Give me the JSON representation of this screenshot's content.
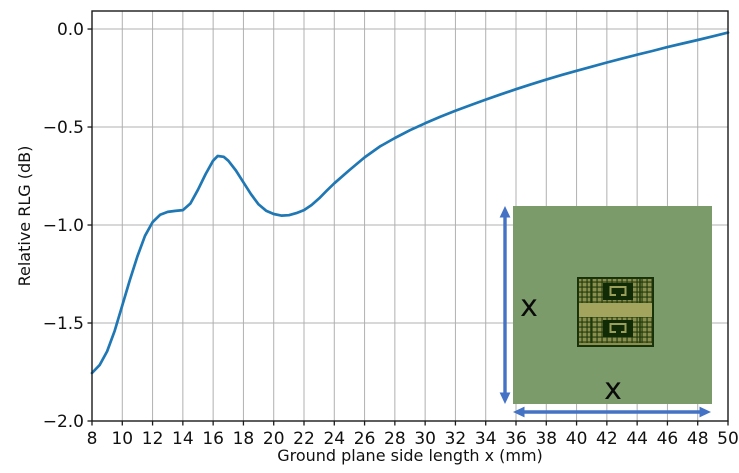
{
  "figure": {
    "background": "#ffffff"
  },
  "chart_data": {
    "type": "line",
    "title": "",
    "xlabel": "Ground plane side length x (mm)",
    "ylabel": "Relative RLG (dB)",
    "xlim": [
      8,
      50
    ],
    "ylim": [
      -2.0,
      0.092
    ],
    "grid": true,
    "legend": null,
    "xticks": [
      8,
      10,
      12,
      14,
      16,
      18,
      20,
      22,
      24,
      26,
      28,
      30,
      32,
      34,
      36,
      38,
      40,
      42,
      44,
      46,
      48,
      50
    ],
    "ytick_values": [
      0.0,
      -0.5,
      -1.0,
      -1.5,
      -2.0
    ],
    "ytick_labels": [
      "0.0",
      "−0.5",
      "−1.0",
      "−1.5",
      "−2.0"
    ],
    "colors": {
      "line": "#1f77b4",
      "grid": "#b0b0b0",
      "axis": "#1a1a1a",
      "text": "#111111"
    },
    "series": [
      {
        "name": "relative-rlg-vs-ground-plane-size",
        "color": "#1f77b4",
        "x": [
          8,
          8.5,
          9,
          9.5,
          10,
          10.5,
          11,
          11.5,
          12,
          12.5,
          13,
          13.5,
          14,
          14.5,
          15,
          15.5,
          16,
          16.3,
          16.7,
          17,
          17.5,
          18,
          18.5,
          19,
          19.5,
          20,
          20.5,
          21,
          21.5,
          22,
          22.5,
          23,
          23.5,
          24,
          25,
          26,
          27,
          28,
          29,
          30,
          31,
          32,
          33,
          34,
          35,
          36,
          37,
          38,
          39,
          40,
          41,
          42,
          43,
          44,
          45,
          46,
          47,
          48,
          49,
          50
        ],
        "y": [
          -1.755,
          -1.715,
          -1.645,
          -1.54,
          -1.41,
          -1.28,
          -1.16,
          -1.055,
          -0.985,
          -0.948,
          -0.933,
          -0.928,
          -0.924,
          -0.89,
          -0.82,
          -0.74,
          -0.672,
          -0.648,
          -0.652,
          -0.672,
          -0.722,
          -0.782,
          -0.843,
          -0.895,
          -0.927,
          -0.944,
          -0.952,
          -0.95,
          -0.939,
          -0.924,
          -0.898,
          -0.864,
          -0.825,
          -0.787,
          -0.72,
          -0.655,
          -0.6,
          -0.556,
          -0.516,
          -0.481,
          -0.448,
          -0.417,
          -0.388,
          -0.36,
          -0.333,
          -0.307,
          -0.282,
          -0.258,
          -0.235,
          -0.213,
          -0.192,
          -0.171,
          -0.151,
          -0.131,
          -0.112,
          -0.092,
          -0.074,
          -0.056,
          -0.037,
          -0.018
        ]
      }
    ]
  },
  "inset": {
    "side_label_vertical": "x",
    "side_label_bottom": "x",
    "plane_color": "#7b9b6b",
    "arrow_color": "#4472c4",
    "chip_colors": {
      "substrate_dark": "#1f3a0c",
      "pad_khaki": "#8a8f4d",
      "center_band": "#a3a45e",
      "cavity_dark": "#122b07",
      "loop_trace": "#9aa05a"
    }
  }
}
